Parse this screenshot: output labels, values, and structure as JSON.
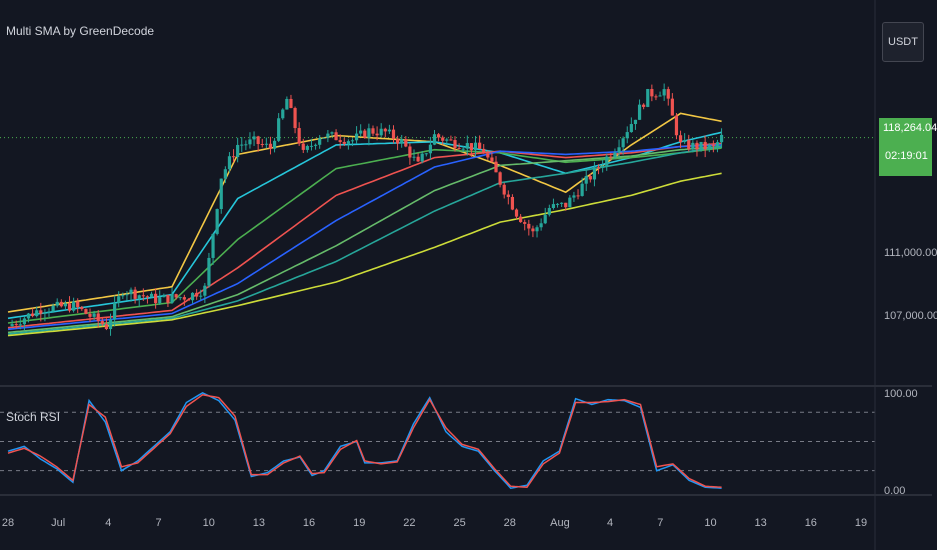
{
  "indicator_title": "Multi SMA by GreenDecode",
  "stoch_title": "Stoch RSI",
  "currency": "USDT",
  "last_price": "118,264.04",
  "countdown": "02:19:01",
  "colors": {
    "background": "#131722",
    "up": "#26a69a",
    "down": "#ef5350",
    "price_tag": "#4caf50",
    "k_line": "#2196f3",
    "d_line": "#ef5350"
  },
  "chart_data": [
    {
      "type": "candlestick",
      "title": "",
      "xlabel": "",
      "ylabel": "",
      "x_ticks": [
        "28",
        "Jul",
        "4",
        "7",
        "10",
        "13",
        "16",
        "19",
        "22",
        "25",
        "28",
        "Aug",
        "4",
        "7",
        "10",
        "13",
        "16",
        "19"
      ],
      "y_ticks": [
        {
          "value": 107000,
          "label": "107,000.00"
        },
        {
          "value": 111000,
          "label": "111,000.00"
        }
      ],
      "ylim": [
        102500,
        127000
      ],
      "last_price": 118264.04,
      "grid": false,
      "close_series_approx": [
        {
          "d": 0,
          "v": 106300
        },
        {
          "d": 2,
          "v": 107400
        },
        {
          "d": 4,
          "v": 107600
        },
        {
          "d": 6,
          "v": 106300
        },
        {
          "d": 7,
          "v": 108600
        },
        {
          "d": 9,
          "v": 108000
        },
        {
          "d": 11,
          "v": 108200
        },
        {
          "d": 12,
          "v": 108700
        },
        {
          "d": 13,
          "v": 115800
        },
        {
          "d": 14,
          "v": 117800
        },
        {
          "d": 15,
          "v": 118000
        },
        {
          "d": 16,
          "v": 117600
        },
        {
          "d": 17,
          "v": 120700
        },
        {
          "d": 18,
          "v": 117200
        },
        {
          "d": 19,
          "v": 118400
        },
        {
          "d": 20,
          "v": 118300
        },
        {
          "d": 21,
          "v": 118100
        },
        {
          "d": 22,
          "v": 118700
        },
        {
          "d": 23,
          "v": 118600
        },
        {
          "d": 24,
          "v": 118000
        },
        {
          "d": 25,
          "v": 116500
        },
        {
          "d": 26,
          "v": 118400
        },
        {
          "d": 27,
          "v": 118000
        },
        {
          "d": 28,
          "v": 117800
        },
        {
          "d": 29,
          "v": 117400
        },
        {
          "d": 31,
          "v": 113500
        },
        {
          "d": 32,
          "v": 112200
        },
        {
          "d": 33,
          "v": 113800
        },
        {
          "d": 34,
          "v": 114000
        },
        {
          "d": 35,
          "v": 115200
        },
        {
          "d": 36,
          "v": 116400
        },
        {
          "d": 37,
          "v": 117600
        },
        {
          "d": 38,
          "v": 119200
        },
        {
          "d": 39,
          "v": 121000
        },
        {
          "d": 40,
          "v": 121300
        },
        {
          "d": 41,
          "v": 117800
        },
        {
          "d": 42,
          "v": 117700
        },
        {
          "d": 43,
          "v": 117600
        },
        {
          "d": 43.5,
          "v": 118264.04
        }
      ],
      "sma_series_approx": [
        {
          "name": "",
          "color": "#f2c744",
          "points": [
            [
              0,
              107200
            ],
            [
              10,
              108800
            ],
            [
              14,
              117200
            ],
            [
              20,
              118400
            ],
            [
              26,
              118000
            ],
            [
              30,
              116500
            ],
            [
              34,
              114800
            ],
            [
              38,
              117800
            ],
            [
              41,
              119800
            ],
            [
              43.5,
              119300
            ]
          ]
        },
        {
          "name": "",
          "color": "#26c6da",
          "points": [
            [
              0,
              106800
            ],
            [
              10,
              108300
            ],
            [
              14,
              114400
            ],
            [
              20,
              117800
            ],
            [
              26,
              118000
            ],
            [
              30,
              117300
            ],
            [
              34,
              116000
            ],
            [
              38,
              117000
            ],
            [
              41,
              118000
            ],
            [
              43.5,
              118600
            ]
          ]
        },
        {
          "name": "",
          "color": "#4caf50",
          "points": [
            [
              0,
              106500
            ],
            [
              10,
              107800
            ],
            [
              14,
              111800
            ],
            [
              20,
              116300
            ],
            [
              26,
              117500
            ],
            [
              30,
              117300
            ],
            [
              34,
              116700
            ],
            [
              38,
              117000
            ],
            [
              41,
              117300
            ],
            [
              43.5,
              117600
            ]
          ]
        },
        {
          "name": "",
          "color": "#ef5350",
          "points": [
            [
              0,
              106200
            ],
            [
              10,
              107300
            ],
            [
              14,
              110000
            ],
            [
              20,
              114600
            ],
            [
              26,
              117000
            ],
            [
              30,
              117400
            ],
            [
              34,
              117000
            ],
            [
              38,
              117300
            ],
            [
              41,
              117700
            ],
            [
              43.5,
              117900
            ]
          ]
        },
        {
          "name": "",
          "color": "#2962ff",
          "points": [
            [
              0,
              106100
            ],
            [
              10,
              107100
            ],
            [
              14,
              109000
            ],
            [
              20,
              113000
            ],
            [
              26,
              116400
            ],
            [
              30,
              117400
            ],
            [
              34,
              117200
            ],
            [
              38,
              117400
            ],
            [
              41,
              117700
            ],
            [
              43.5,
              117800
            ]
          ]
        },
        {
          "name": "",
          "color": "#66bb6a",
          "points": [
            [
              0,
              105900
            ],
            [
              10,
              106900
            ],
            [
              14,
              108300
            ],
            [
              20,
              111400
            ],
            [
              26,
              114900
            ],
            [
              30,
              116500
            ],
            [
              34,
              116800
            ],
            [
              38,
              117100
            ],
            [
              41,
              117500
            ],
            [
              43.5,
              117700
            ]
          ]
        },
        {
          "name": "",
          "color": "#26a69a",
          "points": [
            [
              0,
              105800
            ],
            [
              10,
              106800
            ],
            [
              14,
              107900
            ],
            [
              20,
              110400
            ],
            [
              26,
              113600
            ],
            [
              30,
              115400
            ],
            [
              34,
              116000
            ],
            [
              38,
              116700
            ],
            [
              41,
              117300
            ],
            [
              43.5,
              117700
            ]
          ]
        },
        {
          "name": "",
          "color": "#cddc39",
          "points": [
            [
              0,
              105700
            ],
            [
              10,
              106700
            ],
            [
              14,
              107600
            ],
            [
              20,
              109100
            ],
            [
              26,
              111300
            ],
            [
              30,
              112900
            ],
            [
              34,
              113700
            ],
            [
              38,
              114600
            ],
            [
              41,
              115500
            ],
            [
              43.5,
              116000
            ]
          ]
        }
      ]
    },
    {
      "type": "line",
      "title": "Stoch RSI",
      "y_ticks": [
        {
          "value": 100,
          "label": "100.00"
        },
        {
          "value": 0,
          "label": "0.00"
        }
      ],
      "ylim": [
        -5,
        107
      ],
      "guide_levels": [
        80,
        50,
        20
      ],
      "series": [
        {
          "name": "",
          "color": "#2196f3",
          "values_approx": [
            [
              0,
              40
            ],
            [
              2,
              45
            ],
            [
              4,
              32
            ],
            [
              6,
              22
            ],
            [
              8,
              8
            ],
            [
              10,
              92
            ],
            [
              12,
              70
            ],
            [
              14,
              20
            ],
            [
              16,
              30
            ],
            [
              18,
              45
            ],
            [
              20,
              60
            ],
            [
              22,
              90
            ],
            [
              24,
              100
            ],
            [
              26,
              92
            ],
            [
              28,
              72
            ],
            [
              30,
              14
            ],
            [
              32,
              18
            ],
            [
              34,
              30
            ],
            [
              36,
              34
            ],
            [
              37.5,
              15
            ],
            [
              39,
              20
            ],
            [
              41,
              45
            ],
            [
              43,
              50
            ],
            [
              44,
              28
            ],
            [
              46,
              28
            ],
            [
              48,
              30
            ],
            [
              50,
              68
            ],
            [
              52,
              95
            ],
            [
              54,
              60
            ],
            [
              56,
              45
            ],
            [
              58,
              40
            ],
            [
              60,
              20
            ],
            [
              62,
              2
            ],
            [
              64,
              5
            ],
            [
              66,
              30
            ],
            [
              68,
              40
            ],
            [
              70,
              94
            ],
            [
              72,
              88
            ],
            [
              74,
              93
            ],
            [
              76,
              92
            ],
            [
              78,
              85
            ],
            [
              80,
              20
            ],
            [
              82,
              26
            ],
            [
              84,
              10
            ],
            [
              86,
              3
            ],
            [
              88,
              2
            ]
          ]
        },
        {
          "name": "",
          "color": "#ef5350",
          "values_approx": [
            [
              0,
              38
            ],
            [
              2,
              43
            ],
            [
              4,
              35
            ],
            [
              6,
              24
            ],
            [
              8,
              10
            ],
            [
              10,
              88
            ],
            [
              12,
              75
            ],
            [
              14,
              24
            ],
            [
              16,
              28
            ],
            [
              18,
              43
            ],
            [
              20,
              58
            ],
            [
              22,
              86
            ],
            [
              24,
              98
            ],
            [
              26,
              95
            ],
            [
              28,
              76
            ],
            [
              30,
              16
            ],
            [
              32,
              16
            ],
            [
              34,
              28
            ],
            [
              36,
              35
            ],
            [
              37.5,
              17
            ],
            [
              39,
              18
            ],
            [
              41,
              42
            ],
            [
              43,
              51
            ],
            [
              44,
              30
            ],
            [
              46,
              27
            ],
            [
              48,
              29
            ],
            [
              50,
              64
            ],
            [
              52,
              93
            ],
            [
              54,
              64
            ],
            [
              56,
              47
            ],
            [
              58,
              42
            ],
            [
              60,
              22
            ],
            [
              62,
              4
            ],
            [
              64,
              3
            ],
            [
              66,
              27
            ],
            [
              68,
              38
            ],
            [
              70,
              90
            ],
            [
              72,
              90
            ],
            [
              74,
              91
            ],
            [
              76,
              93
            ],
            [
              78,
              88
            ],
            [
              80,
              24
            ],
            [
              82,
              27
            ],
            [
              84,
              12
            ],
            [
              86,
              4
            ],
            [
              88,
              3
            ]
          ]
        }
      ]
    }
  ]
}
